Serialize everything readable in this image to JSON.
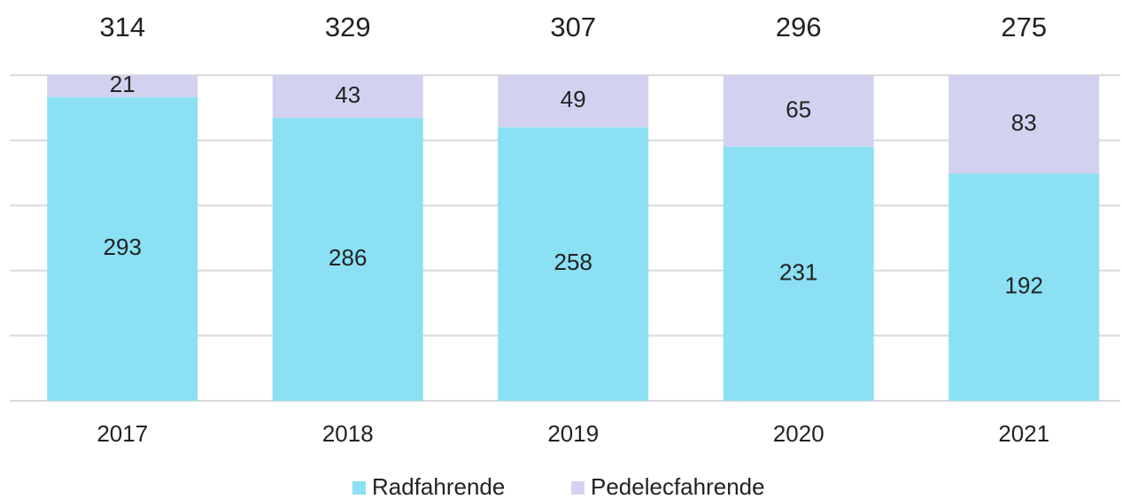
{
  "chart_data": {
    "type": "bar",
    "stacked": "percent",
    "categories": [
      "2017",
      "2018",
      "2019",
      "2020",
      "2021"
    ],
    "series": [
      {
        "name": "Radfahrende",
        "color": "#8be0f4",
        "values": [
          293,
          286,
          258,
          231,
          192
        ]
      },
      {
        "name": "Pedelecfahrende",
        "color": "#d2d2f0",
        "values": [
          21,
          43,
          49,
          65,
          83
        ]
      }
    ],
    "totals": [
      314,
      329,
      307,
      296,
      275
    ],
    "ylim": [
      0,
      100
    ],
    "yticks": [
      0,
      20,
      40,
      60,
      80,
      100
    ],
    "grid": true,
    "legend": "bottom"
  }
}
